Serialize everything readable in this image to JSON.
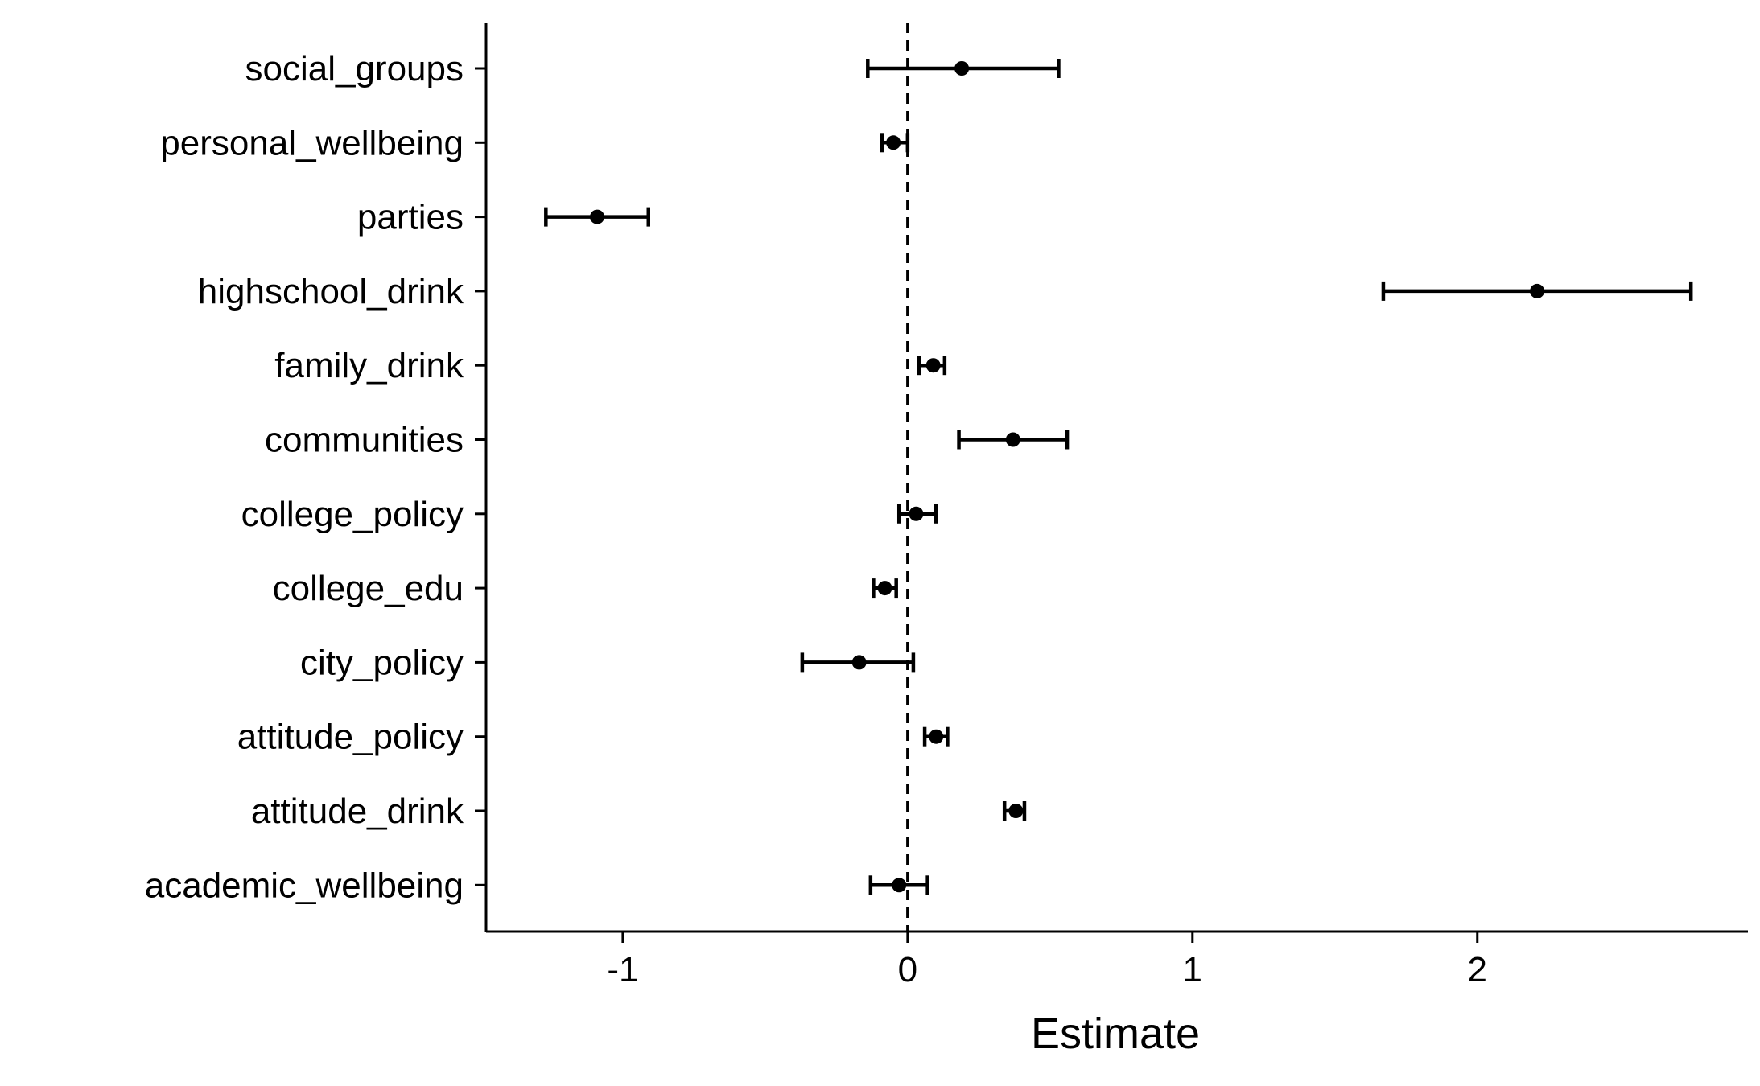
{
  "chart_data": {
    "type": "scatter",
    "title": "",
    "xlabel": "Estimate",
    "ylabel": "",
    "xlim": [
      -1.48,
      2.95
    ],
    "xticks": [
      {
        "value": -1,
        "label": "-1"
      },
      {
        "value": 0,
        "label": "0"
      },
      {
        "value": 1,
        "label": "1"
      },
      {
        "value": 2,
        "label": "2"
      }
    ],
    "reference_line": 0,
    "grid": false,
    "legend": "none",
    "series": [
      {
        "points": [
          {
            "term": "social_groups",
            "estimate": 0.19,
            "conf_low": -0.14,
            "conf_high": 0.53
          },
          {
            "term": "personal_wellbeing",
            "estimate": -0.05,
            "conf_low": -0.09,
            "conf_high": 0.0
          },
          {
            "term": "parties",
            "estimate": -1.09,
            "conf_low": -1.27,
            "conf_high": -0.91
          },
          {
            "term": "highschool_drink",
            "estimate": 2.21,
            "conf_low": 1.67,
            "conf_high": 2.75
          },
          {
            "term": "family_drink",
            "estimate": 0.09,
            "conf_low": 0.04,
            "conf_high": 0.13
          },
          {
            "term": "communities",
            "estimate": 0.37,
            "conf_low": 0.18,
            "conf_high": 0.56
          },
          {
            "term": "college_policy",
            "estimate": 0.03,
            "conf_low": -0.03,
            "conf_high": 0.1
          },
          {
            "term": "college_edu",
            "estimate": -0.08,
            "conf_low": -0.12,
            "conf_high": -0.04
          },
          {
            "term": "city_policy",
            "estimate": -0.17,
            "conf_low": -0.37,
            "conf_high": 0.02
          },
          {
            "term": "attitude_policy",
            "estimate": 0.1,
            "conf_low": 0.06,
            "conf_high": 0.14
          },
          {
            "term": "attitude_drink",
            "estimate": 0.38,
            "conf_low": 0.34,
            "conf_high": 0.41
          },
          {
            "term": "academic_wellbeing",
            "estimate": -0.03,
            "conf_low": -0.13,
            "conf_high": 0.07
          }
        ]
      }
    ],
    "colors": {
      "ink": "#000000",
      "background": "#ffffff"
    }
  }
}
